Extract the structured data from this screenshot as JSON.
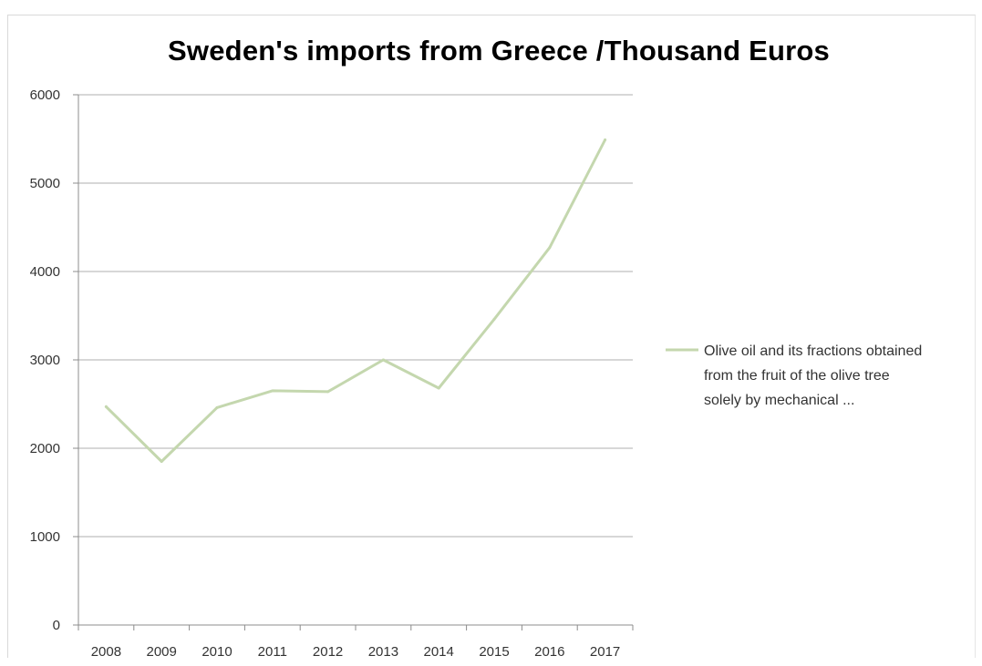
{
  "chart_data": {
    "type": "line",
    "title": "Sweden's imports from Greece /Thousand Euros",
    "xlabel": "",
    "ylabel": "",
    "x": [
      "2008",
      "2009",
      "2010",
      "2011",
      "2012",
      "2013",
      "2014",
      "2015",
      "2016",
      "2017"
    ],
    "ylim": [
      0,
      6000
    ],
    "yticks": [
      "0",
      "1000",
      "2000",
      "3000",
      "4000",
      "5000",
      "6000"
    ],
    "grid": true,
    "legend_position": "right",
    "series": [
      {
        "name": "Olive oil and its fractions obtained from the fruit of the olive tree solely by mechanical ...",
        "legend_lines": [
          "Olive oil and its fractions obtained",
          "from the fruit of the olive tree",
          "solely by mechanical ..."
        ],
        "color": "#c4d7ae",
        "values": [
          2470,
          1850,
          2460,
          2650,
          2640,
          3000,
          2680,
          3460,
          4270,
          5490
        ]
      }
    ]
  }
}
